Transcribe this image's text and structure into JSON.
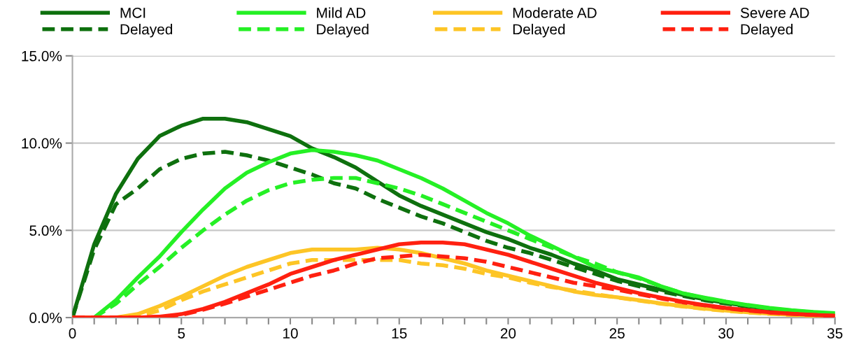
{
  "chart_data": {
    "type": "line",
    "x": [
      0,
      1,
      2,
      3,
      4,
      5,
      6,
      7,
      8,
      9,
      10,
      11,
      12,
      13,
      14,
      15,
      16,
      17,
      18,
      19,
      20,
      21,
      22,
      23,
      24,
      25,
      26,
      27,
      28,
      29,
      30,
      31,
      32,
      33,
      34,
      35
    ],
    "series": [
      {
        "name": "MCI",
        "color": "#0e700e",
        "line_style": "solid",
        "values": [
          0,
          4.2,
          7.1,
          9.1,
          10.4,
          11.0,
          11.4,
          11.4,
          11.2,
          10.8,
          10.4,
          9.7,
          9.2,
          8.6,
          7.8,
          7.0,
          6.4,
          5.9,
          5.4,
          4.9,
          4.5,
          4.0,
          3.6,
          3.1,
          2.7,
          2.2,
          1.9,
          1.6,
          1.3,
          1.05,
          0.85,
          0.65,
          0.5,
          0.4,
          null,
          null
        ]
      },
      {
        "name": "Delayed",
        "color": "#0e700e",
        "line_style": "dashed",
        "values": [
          0,
          3.9,
          6.5,
          7.4,
          8.5,
          9.1,
          9.4,
          9.5,
          9.3,
          9.0,
          8.6,
          8.2,
          7.7,
          7.4,
          6.8,
          6.3,
          5.8,
          5.4,
          4.9,
          4.4,
          4.0,
          3.7,
          3.3,
          2.9,
          2.5,
          2.1,
          1.8,
          1.5,
          1.25,
          1.0,
          0.8,
          0.62,
          0.48,
          null,
          null,
          null
        ]
      },
      {
        "name": "Mild AD",
        "color": "#25f025",
        "line_style": "solid",
        "values": [
          null,
          0,
          1.0,
          2.3,
          3.5,
          4.9,
          6.2,
          7.4,
          8.3,
          8.9,
          9.4,
          9.6,
          9.5,
          9.3,
          9.0,
          8.5,
          8.0,
          7.4,
          6.7,
          6.0,
          5.4,
          4.7,
          4.1,
          3.5,
          2.9,
          2.6,
          2.3,
          1.8,
          1.4,
          1.15,
          0.92,
          0.72,
          0.55,
          0.42,
          0.32,
          0.25
        ]
      },
      {
        "name": "Delayed",
        "color": "#25f025",
        "line_style": "dashed",
        "values": [
          null,
          0,
          0.8,
          1.9,
          2.9,
          4.0,
          5.0,
          5.9,
          6.7,
          7.3,
          7.7,
          7.9,
          8.0,
          8.0,
          7.7,
          7.4,
          7.0,
          6.5,
          6.0,
          5.5,
          5.0,
          4.5,
          4.0,
          3.5,
          3.1,
          2.6,
          2.25,
          1.8,
          1.4,
          1.12,
          0.9,
          0.7,
          0.53,
          0.4,
          0.3,
          0.22
        ]
      },
      {
        "name": "Moderate AD",
        "color": "#fdc526",
        "line_style": "solid",
        "values": [
          0,
          0,
          0,
          0.2,
          0.66,
          1.2,
          1.8,
          2.4,
          2.9,
          3.3,
          3.7,
          3.9,
          3.9,
          3.9,
          4.0,
          3.9,
          3.7,
          3.4,
          3.1,
          2.7,
          2.4,
          2.1,
          1.8,
          1.5,
          1.3,
          1.17,
          1.0,
          0.82,
          0.66,
          0.52,
          0.4,
          0.3,
          0.22,
          0.16,
          0.12,
          0.08
        ]
      },
      {
        "name": "Delayed",
        "color": "#fdc526",
        "line_style": "dashed",
        "values": [
          0,
          0,
          0,
          0.1,
          0.4,
          1.0,
          1.5,
          1.9,
          2.3,
          2.7,
          3.1,
          3.3,
          3.3,
          3.3,
          3.3,
          3.3,
          3.1,
          3.0,
          2.8,
          2.5,
          2.3,
          2.0,
          1.75,
          1.55,
          1.35,
          1.15,
          0.98,
          0.8,
          0.64,
          0.5,
          0.38,
          0.29,
          0.21,
          0.15,
          0.11,
          0.07
        ]
      },
      {
        "name": "Severe AD",
        "color": "#ff2010",
        "line_style": "solid",
        "values": [
          0,
          0,
          0,
          0,
          0.05,
          0.2,
          0.5,
          0.9,
          1.4,
          1.9,
          2.5,
          2.9,
          3.3,
          3.6,
          3.9,
          4.2,
          4.3,
          4.3,
          4.2,
          3.9,
          3.6,
          3.2,
          2.8,
          2.4,
          2.0,
          1.7,
          1.4,
          1.15,
          0.92,
          0.72,
          0.55,
          0.42,
          0.3,
          0.22,
          0.15,
          0.1
        ]
      },
      {
        "name": "Delayed",
        "color": "#ff2010",
        "line_style": "dashed",
        "values": [
          0,
          0,
          0,
          0,
          0.05,
          0.15,
          0.45,
          0.8,
          1.2,
          1.6,
          2.0,
          2.4,
          2.7,
          3.1,
          3.4,
          3.5,
          3.6,
          3.5,
          3.4,
          3.2,
          2.9,
          2.6,
          2.3,
          2.0,
          1.8,
          1.6,
          1.35,
          1.1,
          0.88,
          0.7,
          0.53,
          0.4,
          0.29,
          0.21,
          0.15,
          0.1
        ]
      }
    ],
    "xlim": [
      0,
      35
    ],
    "xticks": [
      0,
      {
        "value": 1,
        "label": null
      },
      {
        "value": 2,
        "label": null
      },
      {
        "value": 3,
        "label": null
      },
      {
        "value": 4,
        "label": null
      },
      5,
      {
        "value": 6,
        "label": null
      },
      {
        "value": 7,
        "label": null
      },
      {
        "value": 8,
        "label": null
      },
      {
        "value": 9,
        "label": null
      },
      10,
      {
        "value": 11,
        "label": null
      },
      {
        "value": 12,
        "label": null
      },
      {
        "value": 13,
        "label": null
      },
      {
        "value": 14,
        "label": null
      },
      15,
      {
        "value": 16,
        "label": null
      },
      {
        "value": 17,
        "label": null
      },
      {
        "value": 18,
        "label": null
      },
      {
        "value": 19,
        "label": null
      },
      20,
      {
        "value": 21,
        "label": null
      },
      {
        "value": 22,
        "label": null
      },
      {
        "value": 23,
        "label": null
      },
      {
        "value": 24,
        "label": null
      },
      25,
      {
        "value": 26,
        "label": null
      },
      {
        "value": 27,
        "label": null
      },
      {
        "value": 28,
        "label": null
      },
      {
        "value": 29,
        "label": null
      },
      30,
      {
        "value": 31,
        "label": null
      },
      {
        "value": 32,
        "label": null
      },
      {
        "value": 33,
        "label": null
      },
      {
        "value": 34,
        "label": null
      },
      35
    ],
    "ylim": [
      0,
      15
    ],
    "yticks": [
      {
        "value": 0,
        "label": "0.0%"
      },
      {
        "value": 5,
        "label": "5.0%"
      },
      {
        "value": 10,
        "label": "10.0%"
      },
      {
        "value": 15,
        "label": "15.0%"
      }
    ],
    "grid": "y",
    "legend": "top",
    "marker": "none"
  }
}
